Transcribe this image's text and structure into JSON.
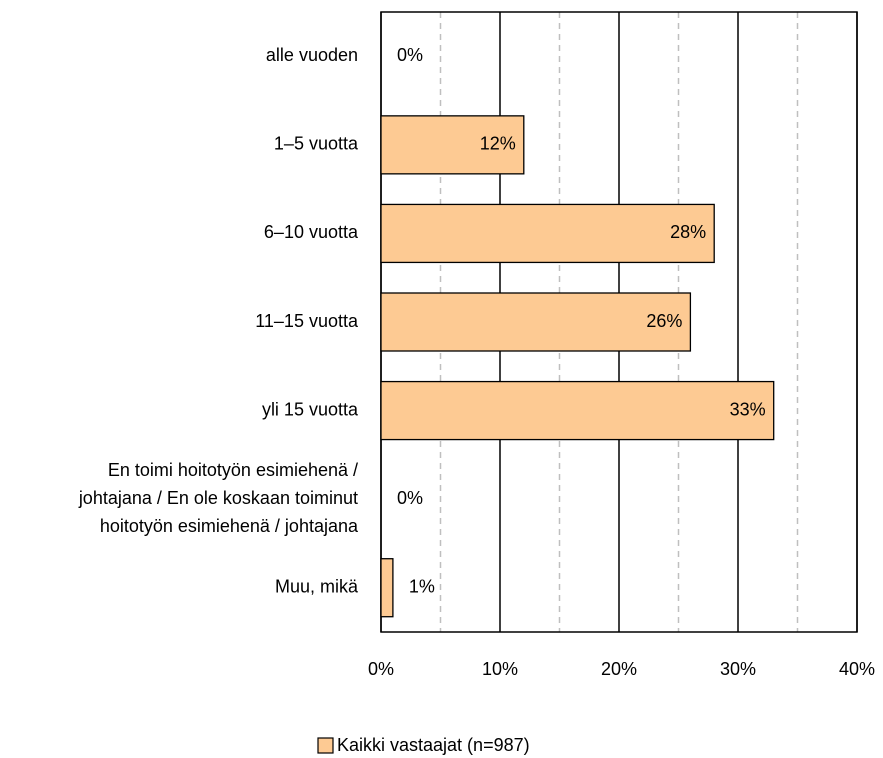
{
  "chart_data": {
    "type": "barh",
    "categories": [
      "alle vuoden",
      "1–5 vuotta",
      "6–10 vuotta",
      "11–15 vuotta",
      "yli 15 vuotta",
      "En toimi hoitotyön esimiehenä /\njohtajana / En ole koskaan toiminut\nhoitotyön esimiehenä / johtajana",
      "Muu, mikä"
    ],
    "series": [
      {
        "name": "Kaikki vastaajat (n=987)",
        "color": "#fdca93",
        "values": [
          0,
          12,
          28,
          26,
          33,
          0,
          1
        ],
        "value_labels": [
          "0%",
          "12%",
          "28%",
          "26%",
          "33%",
          "0%",
          "1%"
        ]
      }
    ],
    "xlim": [
      0,
      40
    ],
    "xticks": [
      {
        "value": 0,
        "label": "0%"
      },
      {
        "value": 10,
        "label": "10%"
      },
      {
        "value": 20,
        "label": "20%"
      },
      {
        "value": 30,
        "label": "30%"
      },
      {
        "value": 40,
        "label": "40%"
      }
    ],
    "minor_xticks": [
      5,
      15,
      25,
      35
    ],
    "grid": true,
    "legend": "bottom"
  }
}
